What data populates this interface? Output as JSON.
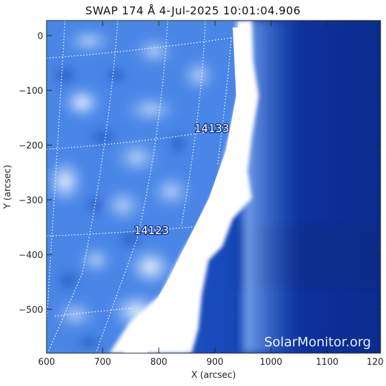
{
  "title": "SWAP 174 Å   4-Jul-2025 10:01:04.906",
  "xlabel": "X (arcsec)",
  "ylabel": "Y (arcsec)",
  "x_ticks": [
    "600",
    "700",
    "800",
    "900",
    "1000",
    "1100",
    "120"
  ],
  "y_ticks": [
    "0",
    "−100",
    "−200",
    "−300",
    "−400",
    "−500"
  ],
  "regions": [
    "14133",
    "14123"
  ],
  "watermark": "SolarMonitor.org",
  "colors": {
    "background": "#0c3aa8",
    "limb": "#ffffff",
    "disk": "#4a86e6",
    "grid": "#ffffff"
  }
}
